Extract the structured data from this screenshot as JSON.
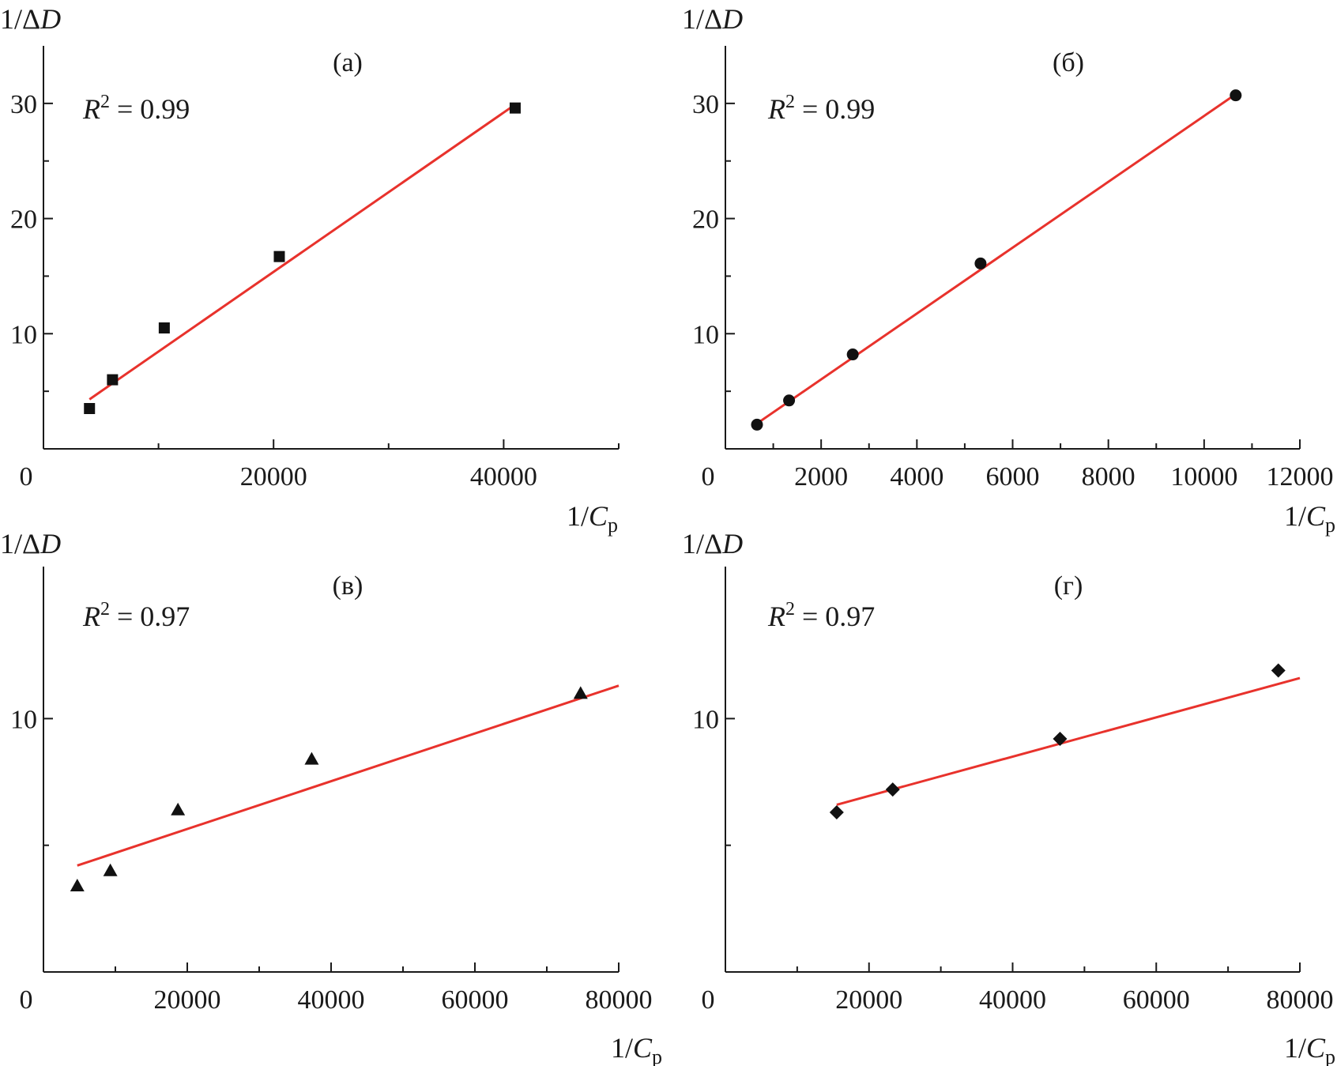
{
  "chart_data": [
    {
      "type": "scatter",
      "panel_label": "(а)",
      "annotation": {
        "prefix": "R",
        "sup": "2",
        "suffix": " = 0.99"
      },
      "ylabel": {
        "main": "1/Δ",
        "italic": "D"
      },
      "xlabel": {
        "main": "1/",
        "italic": "C",
        "sub": "p"
      },
      "origin_label": "0",
      "marker": "square",
      "xlim": [
        0,
        50000
      ],
      "ylim": [
        0,
        35
      ],
      "xticks": [
        20000,
        40000
      ],
      "xtick_labels": [
        "20000",
        "40000"
      ],
      "xminor": [
        10000,
        30000,
        50000
      ],
      "yticks": [
        10,
        20,
        30
      ],
      "ytick_labels": [
        "10",
        "20",
        "30"
      ],
      "yminor": [
        5,
        15,
        25
      ],
      "series": [
        {
          "x": [
            4000,
            6000,
            10500,
            20500,
            41000
          ],
          "y": [
            3.5,
            6.0,
            10.5,
            16.7,
            29.6
          ]
        }
      ],
      "fit": {
        "x": [
          4000,
          41000
        ],
        "y": [
          4.3,
          29.9
        ]
      }
    },
    {
      "type": "scatter",
      "panel_label": "(б)",
      "annotation": {
        "prefix": "R",
        "sup": "2",
        "suffix": " = 0.99"
      },
      "ylabel": {
        "main": "1/Δ",
        "italic": "D"
      },
      "xlabel": {
        "main": "1/",
        "italic": "C",
        "sub": "p"
      },
      "origin_label": "0",
      "marker": "circle",
      "xlim": [
        0,
        12000
      ],
      "ylim": [
        0,
        35
      ],
      "xticks": [
        2000,
        4000,
        6000,
        8000,
        10000,
        12000
      ],
      "xtick_labels": [
        "2000",
        "4000",
        "6000",
        "8000",
        "10000",
        "12000"
      ],
      "xminor": [
        1000,
        3000,
        5000,
        7000,
        9000,
        11000
      ],
      "yticks": [
        10,
        20,
        30
      ],
      "ytick_labels": [
        "10",
        "20",
        "30"
      ],
      "yminor": [
        5,
        15,
        25
      ],
      "series": [
        {
          "x": [
            660,
            1330,
            2660,
            5330,
            10660
          ],
          "y": [
            2.1,
            4.2,
            8.2,
            16.1,
            30.7
          ]
        }
      ],
      "fit": {
        "x": [
          660,
          10660
        ],
        "y": [
          2.2,
          30.8
        ]
      }
    },
    {
      "type": "scatter",
      "panel_label": "(в)",
      "annotation": {
        "prefix": "R",
        "sup": "2",
        "suffix": " = 0.97"
      },
      "ylabel": {
        "main": "1/Δ",
        "italic": "D"
      },
      "xlabel": {
        "main": "1/",
        "italic": "C",
        "sub": "p"
      },
      "origin_label": "0",
      "marker": "triangle",
      "xlim": [
        0,
        80000
      ],
      "ylim": [
        0,
        16
      ],
      "xticks": [
        20000,
        40000,
        60000,
        80000
      ],
      "xtick_labels": [
        "20000",
        "40000",
        "60000",
        "80000"
      ],
      "xminor": [
        10000,
        30000,
        50000,
        70000
      ],
      "yticks": [
        10
      ],
      "ytick_labels": [
        "10"
      ],
      "yminor": [
        5
      ],
      "series": [
        {
          "x": [
            4700,
            9300,
            18700,
            37300,
            74700
          ],
          "y": [
            3.4,
            4.0,
            6.4,
            8.4,
            11.0
          ]
        }
      ],
      "fit": {
        "x": [
          4700,
          80000
        ],
        "y": [
          4.2,
          11.3
        ]
      }
    },
    {
      "type": "scatter",
      "panel_label": "(г)",
      "annotation": {
        "prefix": "R",
        "sup": "2",
        "suffix": " = 0.97"
      },
      "ylabel": {
        "main": "1/Δ",
        "italic": "D"
      },
      "xlabel": {
        "main": "1/",
        "italic": "C",
        "sub": "p"
      },
      "origin_label": "0",
      "marker": "diamond",
      "xlim": [
        0,
        80000
      ],
      "ylim": [
        0,
        16
      ],
      "xticks": [
        20000,
        40000,
        60000,
        80000
      ],
      "xtick_labels": [
        "20000",
        "40000",
        "60000",
        "80000"
      ],
      "xminor": [
        10000,
        30000,
        50000,
        70000
      ],
      "yticks": [
        10
      ],
      "ytick_labels": [
        "10"
      ],
      "yminor": [
        5
      ],
      "series": [
        {
          "x": [
            15500,
            23300,
            46600,
            77000
          ],
          "y": [
            6.3,
            7.2,
            9.2,
            11.9
          ]
        }
      ],
      "fit": {
        "x": [
          15500,
          80000
        ],
        "y": [
          6.6,
          11.6
        ]
      }
    }
  ],
  "colors": {
    "fit_line": "#e8322c",
    "markers": "#111111",
    "axes": "#1a1a1a"
  }
}
